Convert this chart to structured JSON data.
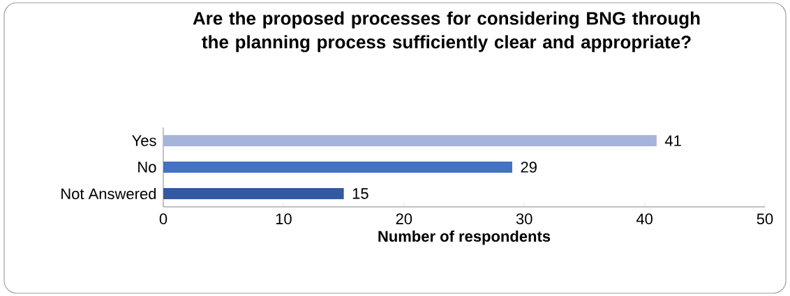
{
  "chart_data": {
    "type": "bar",
    "orientation": "horizontal",
    "title": "Are the proposed processes for considering BNG through the planning process sufficiently clear and appropriate?",
    "xlabel": "Number of respondents",
    "categories": [
      "Yes",
      "No",
      "Not Answered"
    ],
    "values": [
      41,
      29,
      15
    ],
    "colors": [
      "#a5b4da",
      "#4472c4",
      "#335aa0"
    ],
    "xlim": [
      0,
      50
    ],
    "xticks": [
      0,
      10,
      20,
      30,
      40,
      50
    ],
    "data_labels": true
  }
}
